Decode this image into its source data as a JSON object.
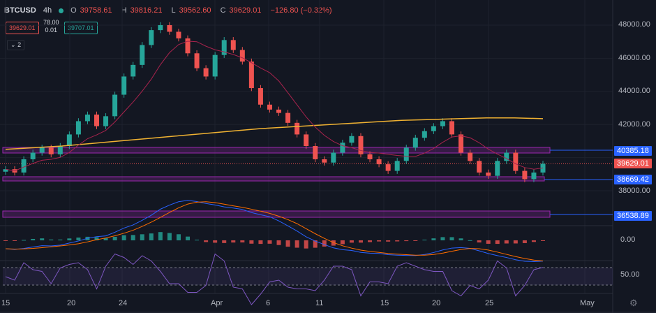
{
  "header": {
    "symbol": "BTCUSD",
    "interval": "4h",
    "status_color": "#26a69a",
    "ohlc": [
      {
        "label": "O",
        "value": "39758.61"
      },
      {
        "label": "H",
        "value": "39816.21"
      },
      {
        "label": "L",
        "value": "39562.60"
      },
      {
        "label": "C",
        "value": "39629.01"
      },
      {
        "label": "",
        "value": "−126.80 (−0.32%)"
      }
    ],
    "sell_price": "39629.01",
    "buy_price": "39707.01",
    "spread_top": "78.00",
    "spread_bottom": "0.01",
    "indicators_collapse": "2"
  },
  "price_scale": {
    "ticks": [
      "48000.00",
      "46000.00",
      "44000.00",
      "42000.00",
      "38000.00"
    ],
    "tags": [
      {
        "value": "40385.18",
        "color": "#2962ff"
      },
      {
        "value": "39629.01",
        "color": "#ef5350"
      },
      {
        "value": "38669.42",
        "color": "#2962ff"
      },
      {
        "value": "36538.89",
        "color": "#2962ff"
      }
    ]
  },
  "macd_scale": {
    "tick": "0.00"
  },
  "rsi_scale": {
    "tick": "50.00"
  },
  "time_axis": {
    "labels": [
      "15",
      "20",
      "24",
      "Apr",
      "6",
      "11",
      "15",
      "20",
      "25",
      "May"
    ]
  },
  "colors": {
    "up": "#26a69a",
    "down": "#ef5350",
    "ma_long": "#f0b232",
    "ma_short": "#a8234d",
    "zone": "#9c27b0",
    "rsi": "#7e57c2"
  },
  "chart_data": {
    "type": "candlestick",
    "x": [
      "15",
      "20",
      "24",
      "Apr",
      "6",
      "11",
      "15",
      "20",
      "25",
      "May"
    ],
    "closes": [
      39300,
      39100,
      39900,
      40300,
      40600,
      40200,
      40700,
      41400,
      42200,
      42600,
      41900,
      42500,
      43800,
      44900,
      45600,
      46800,
      47700,
      48000,
      47600,
      47200,
      46300,
      45400,
      44900,
      46200,
      47100,
      46500,
      45800,
      44200,
      43200,
      42900,
      42700,
      42100,
      41400,
      40700,
      39900,
      39700,
      40300,
      40900,
      41300,
      40200,
      39900,
      39600,
      39200,
      39800,
      40600,
      41200,
      41600,
      41900,
      42200,
      41400,
      40300,
      39800,
      39100,
      38900,
      39800,
      40300,
      39200,
      38700,
      39100,
      39629
    ],
    "ma_long": [
      40500,
      40600,
      40700,
      40850,
      41000,
      41150,
      41300,
      41450,
      41600,
      41750,
      41850,
      41950,
      42050,
      42150,
      42250,
      42300,
      42350,
      42400,
      42400,
      42350
    ],
    "price_tags": [
      "40385.18",
      "39629.01",
      "38669.42",
      "36538.89"
    ],
    "ylim": [
      36000,
      49000
    ]
  }
}
